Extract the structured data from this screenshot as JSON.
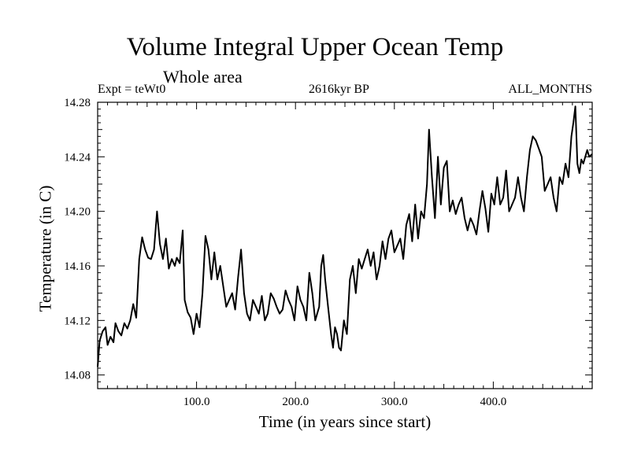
{
  "chart_data": {
    "type": "line",
    "title": "Volume Integral Upper Ocean Temp",
    "subtitle": "Whole area",
    "annotations": {
      "left": "Expt = teWt0",
      "center": "2616kyr BP",
      "right": "ALL_MONTHS"
    },
    "xlabel": "Time (in years since start)",
    "ylabel": "Temperature (in C)",
    "xlim": [
      0,
      500
    ],
    "ylim": [
      14.07,
      14.28
    ],
    "x_ticks": [
      100,
      200,
      300,
      400
    ],
    "x_tick_labels": [
      "100.0",
      "200.0",
      "300.0",
      "400.0"
    ],
    "y_ticks": [
      14.08,
      14.12,
      14.16,
      14.2,
      14.24,
      14.28
    ],
    "y_tick_labels": [
      "14.08",
      "14.12",
      "14.16",
      "14.20",
      "14.24",
      "14.28"
    ],
    "grid": false,
    "series": [
      {
        "name": "Volume Integral Upper Ocean Temp",
        "x": [
          0,
          2,
          5,
          8,
          10,
          13,
          16,
          18,
          21,
          24,
          27,
          30,
          33,
          36,
          39,
          42,
          45,
          48,
          51,
          54,
          57,
          60,
          63,
          66,
          69,
          72,
          75,
          78,
          80,
          83,
          86,
          88,
          91,
          94,
          97,
          100,
          103,
          106,
          109,
          112,
          115,
          118,
          121,
          124,
          127,
          130,
          133,
          136,
          139,
          142,
          145,
          148,
          151,
          154,
          157,
          160,
          163,
          166,
          169,
          172,
          175,
          178,
          181,
          184,
          187,
          190,
          193,
          196,
          199,
          202,
          205,
          208,
          211,
          214,
          217,
          220,
          222,
          224,
          226,
          228,
          230,
          233,
          236,
          238,
          240,
          242,
          244,
          246,
          249,
          252,
          255,
          258,
          261,
          264,
          267,
          270,
          273,
          276,
          279,
          282,
          285,
          288,
          291,
          294,
          297,
          300,
          303,
          306,
          309,
          312,
          315,
          318,
          321,
          324,
          327,
          330,
          333,
          335,
          338,
          341,
          344,
          347,
          350,
          353,
          356,
          359,
          362,
          365,
          368,
          371,
          374,
          377,
          380,
          383,
          386,
          389,
          392,
          395,
          398,
          401,
          404,
          407,
          410,
          413,
          416,
          419,
          422,
          425,
          428,
          431,
          434,
          437,
          440,
          443,
          446,
          449,
          452,
          455,
          458,
          461,
          464,
          467,
          470,
          473,
          476,
          479,
          481,
          483,
          485,
          487,
          489,
          491,
          493,
          495,
          497,
          500
        ],
        "values": [
          14.086,
          14.105,
          14.112,
          14.115,
          14.102,
          14.108,
          14.104,
          14.118,
          14.112,
          14.109,
          14.118,
          14.114,
          14.12,
          14.132,
          14.122,
          14.165,
          14.181,
          14.172,
          14.166,
          14.165,
          14.172,
          14.2,
          14.176,
          14.165,
          14.18,
          14.158,
          14.165,
          14.16,
          14.166,
          14.162,
          14.186,
          14.135,
          14.126,
          14.122,
          14.11,
          14.125,
          14.115,
          14.14,
          14.182,
          14.172,
          14.15,
          14.17,
          14.15,
          14.16,
          14.145,
          14.13,
          14.135,
          14.14,
          14.128,
          14.152,
          14.172,
          14.14,
          14.125,
          14.12,
          14.135,
          14.13,
          14.125,
          14.138,
          14.12,
          14.125,
          14.14,
          14.136,
          14.13,
          14.125,
          14.128,
          14.142,
          14.135,
          14.13,
          14.12,
          14.145,
          14.135,
          14.13,
          14.12,
          14.155,
          14.14,
          14.12,
          14.125,
          14.13,
          14.16,
          14.168,
          14.15,
          14.13,
          14.11,
          14.1,
          14.115,
          14.11,
          14.1,
          14.098,
          14.12,
          14.11,
          14.15,
          14.16,
          14.14,
          14.165,
          14.158,
          14.165,
          14.172,
          14.16,
          14.17,
          14.15,
          14.16,
          14.178,
          14.165,
          14.18,
          14.186,
          14.17,
          14.175,
          14.18,
          14.165,
          14.19,
          14.198,
          14.178,
          14.205,
          14.18,
          14.2,
          14.195,
          14.22,
          14.26,
          14.225,
          14.195,
          14.24,
          14.205,
          14.232,
          14.237,
          14.2,
          14.208,
          14.198,
          14.205,
          14.21,
          14.195,
          14.186,
          14.195,
          14.19,
          14.183,
          14.2,
          14.215,
          14.202,
          14.185,
          14.213,
          14.205,
          14.225,
          14.205,
          14.21,
          14.23,
          14.2,
          14.205,
          14.21,
          14.225,
          14.21,
          14.2,
          14.225,
          14.245,
          14.255,
          14.252,
          14.246,
          14.24,
          14.215,
          14.22,
          14.225,
          14.21,
          14.2,
          14.225,
          14.22,
          14.235,
          14.225,
          14.255,
          14.265,
          14.277,
          14.235,
          14.228,
          14.238,
          14.235,
          14.24,
          14.245,
          14.24,
          14.242
        ]
      }
    ]
  }
}
